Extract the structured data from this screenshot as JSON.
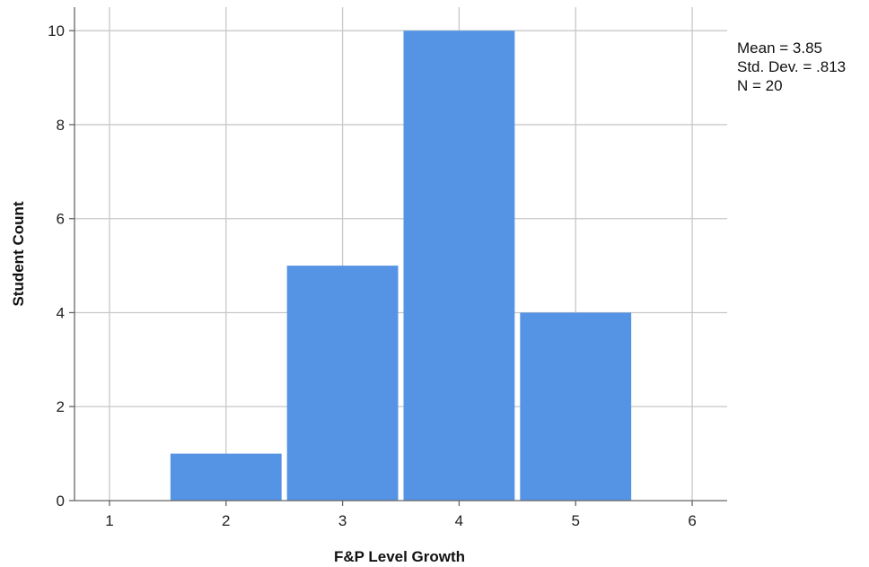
{
  "chart_data": {
    "type": "bar",
    "categories": [
      1,
      2,
      3,
      4,
      5,
      6
    ],
    "values": [
      0,
      1,
      5,
      10,
      4,
      0
    ],
    "xlabel": "F&P Level Growth",
    "ylabel": "Student Count",
    "xlim": [
      0.7,
      6.3
    ],
    "ylim": [
      0,
      10.5
    ],
    "x_ticks": [
      1,
      2,
      3,
      4,
      5,
      6
    ],
    "y_ticks": [
      0,
      2,
      4,
      6,
      8,
      10
    ],
    "grid": true,
    "stats": {
      "mean": "Mean = 3.85",
      "std_dev": "Std. Dev. = .813",
      "n": "N = 20"
    },
    "colors": {
      "bar": "#5594e4",
      "grid": "#c8c8c8",
      "axis": "#666666"
    }
  }
}
